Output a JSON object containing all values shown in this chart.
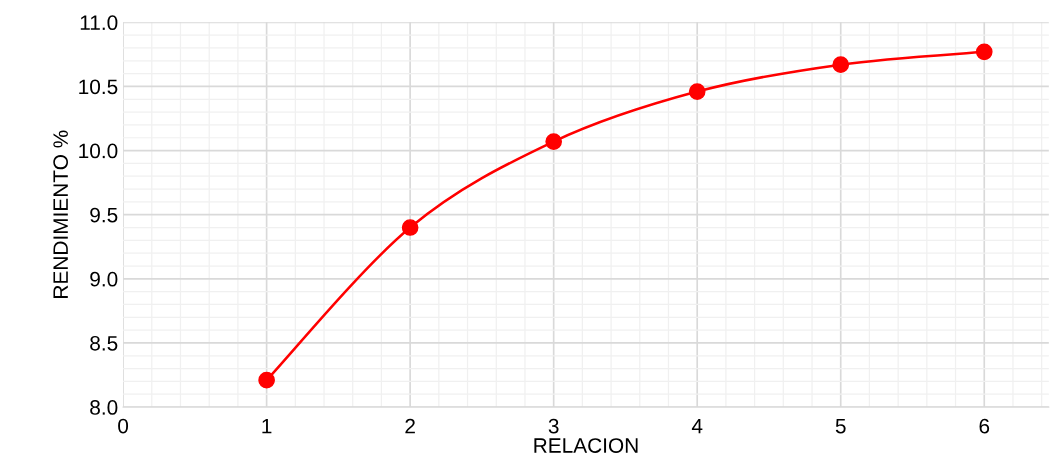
{
  "chart_data": {
    "type": "line",
    "xlabel": "RELACION",
    "ylabel": "RENDIMIENTO %",
    "x": [
      1,
      2,
      3,
      4,
      5,
      6
    ],
    "series": [
      {
        "color": "#ff0000",
        "values": [
          8.21,
          9.4,
          10.07,
          10.46,
          10.67,
          10.77
        ]
      }
    ],
    "xlim": [
      0,
      6.45
    ],
    "xticks": [
      0,
      1,
      2,
      3,
      4,
      5,
      6
    ],
    "ylim": [
      8.0,
      11.0
    ],
    "yticks": [
      {
        "value": 8.0,
        "label": "8.0"
      },
      {
        "value": 8.5,
        "label": "8.5"
      },
      {
        "value": 9.0,
        "label": "9.0"
      },
      {
        "value": 9.5,
        "label": "9.5"
      },
      {
        "value": 10.0,
        "label": "10.0"
      },
      {
        "value": 10.5,
        "label": "10.5"
      },
      {
        "value": 11.0,
        "label": "11.0"
      }
    ],
    "grid": true,
    "marker": "circle",
    "line_style": "solid"
  }
}
